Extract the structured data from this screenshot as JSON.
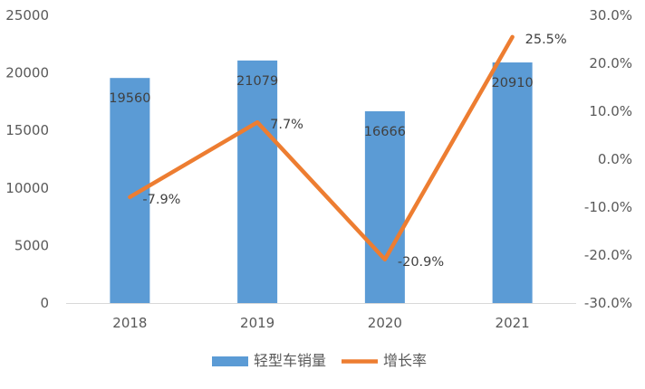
{
  "chart_data": {
    "type": "bar",
    "categories": [
      "2018",
      "2019",
      "2020",
      "2021"
    ],
    "series": [
      {
        "name": "轻型车销量",
        "type": "bar",
        "axis": "left",
        "color": "#5B9BD5",
        "values": [
          19560,
          21079,
          16666,
          20910
        ],
        "labels": [
          "19560",
          "21079",
          "16666",
          "20910"
        ]
      },
      {
        "name": "增长率",
        "type": "line",
        "axis": "right",
        "color": "#ED7D31",
        "values": [
          -7.9,
          7.7,
          -20.9,
          25.5
        ],
        "labels": [
          "-7.9%",
          "7.7%",
          "-20.9%",
          "25.5%"
        ]
      }
    ],
    "y_left": {
      "range": [
        0,
        25000
      ],
      "ticks": [
        0,
        5000,
        10000,
        15000,
        20000,
        25000
      ],
      "tick_labels": [
        "0",
        "5000",
        "10000",
        "15000",
        "20000",
        "25000"
      ]
    },
    "y_right": {
      "range": [
        -30,
        30
      ],
      "ticks": [
        -30,
        -20,
        -10,
        0,
        10,
        20,
        30
      ],
      "tick_labels": [
        "-30.0%",
        "-20.0%",
        "-10.0%",
        "0.0%",
        "10.0%",
        "20.0%",
        "30.0%"
      ]
    },
    "grid": false,
    "legend_position": "bottom"
  }
}
